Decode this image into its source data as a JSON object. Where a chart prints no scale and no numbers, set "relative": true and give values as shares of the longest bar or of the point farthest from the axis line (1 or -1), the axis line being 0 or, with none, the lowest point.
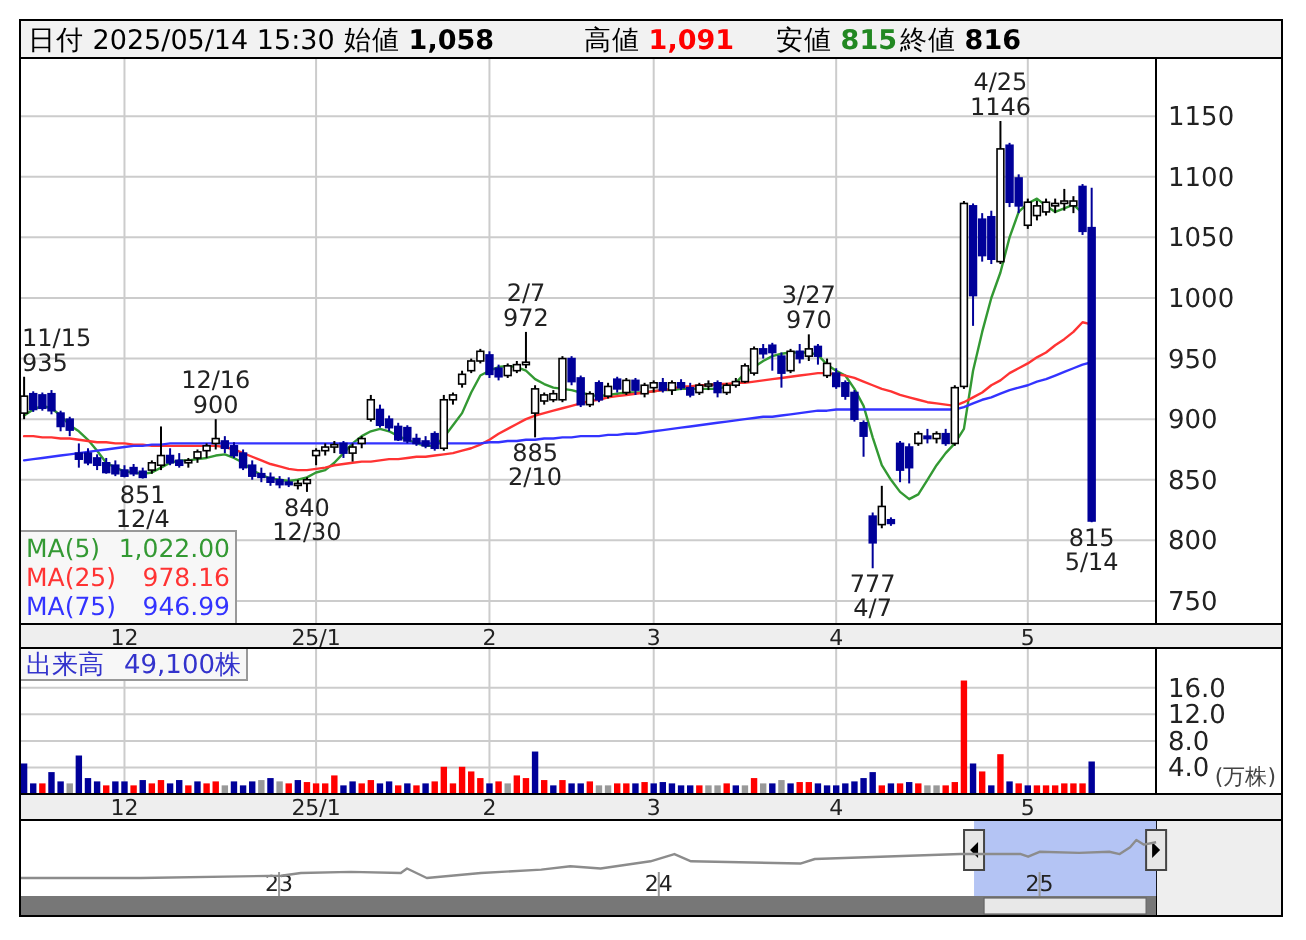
{
  "chart_data": [
    {
      "type": "candlestick",
      "title": "日付 2025/05/14 15:30",
      "annotations": [
        "始値 **1,058**",
        "高値 **1,091**",
        "安値 **815**",
        "終値 **816**",
        "1,022.00",
        "978.16",
        "946.99",
        "11/15",
        "935",
        {
          "text": "851",
          "y": 851
        },
        {
          "text": "12/4",
          "y": 851
        },
        {
          "text": "12/16",
          "y": 900
        },
        {
          "text": "900",
          "y": 900
        },
        {
          "text": "840",
          "y": 840
        },
        {
          "text": "12/30",
          "y": 840
        },
        {
          "text": "2/7",
          "y": 972
        },
        {
          "text": "972",
          "y": 972
        },
        {
          "text": "885",
          "y": 885
        },
        {
          "text": "2/10",
          "y": 885
        },
        {
          "text": "3/27",
          "y": 970
        },
        {
          "text": "970",
          "y": 970
        },
        {
          "text": "777",
          "y": 777
        },
        {
          "text": "4/7",
          "y": 777
        },
        {
          "text": "4/25",
          "y": 1146
        },
        {
          "text": "1146",
          "y": 1146
        },
        {
          "text": "815",
          "y": 815
        },
        {
          "text": "5/14",
          "y": 815
        }
      ],
      "categories": [
        null,
        null,
        null,
        null,
        null,
        null,
        null,
        null,
        null,
        null,
        null,
        "12",
        null,
        null,
        null,
        null,
        null,
        null,
        null,
        null,
        null,
        null,
        null,
        null,
        null,
        null,
        null,
        null,
        null,
        null,
        null,
        null,
        "25/1",
        null,
        null,
        null,
        null,
        null,
        null,
        null,
        null,
        null,
        null,
        null,
        null,
        null,
        null,
        null,
        null,
        null,
        null,
        "2",
        null,
        null,
        null,
        null,
        null,
        null,
        null,
        null,
        null,
        null,
        null,
        null,
        null,
        null,
        null,
        null,
        null,
        "3",
        null,
        null,
        null,
        null,
        null,
        null,
        null,
        null,
        null,
        null,
        null,
        null,
        null,
        null,
        null,
        null,
        null,
        null,
        null,
        "4",
        null,
        null,
        null,
        null,
        null,
        null,
        null,
        null,
        null,
        null,
        null,
        null,
        null,
        null,
        null,
        null,
        null,
        null,
        null,
        null,
        "5",
        null,
        null,
        null,
        null,
        null,
        null,
        null
      ],
      "ohlc": [
        [
          905,
          935,
          900,
          919
        ],
        [
          921,
          923,
          906,
          908
        ],
        [
          920,
          922,
          907,
          909
        ],
        [
          921,
          924,
          904,
          907
        ],
        [
          905,
          907,
          890,
          894
        ],
        [
          900,
          902,
          886,
          891
        ],
        [
          872,
          880,
          860,
          867
        ],
        [
          872,
          876,
          862,
          864
        ],
        [
          868,
          871,
          858,
          862
        ],
        [
          864,
          868,
          855,
          856
        ],
        [
          862,
          866,
          853,
          855
        ],
        [
          858,
          862,
          852,
          853
        ],
        [
          860,
          863,
          853,
          855
        ],
        [
          857,
          860,
          851,
          852
        ],
        [
          858,
          866,
          855,
          864
        ],
        [
          862,
          894,
          858,
          870
        ],
        [
          870,
          876,
          862,
          864
        ],
        [
          866,
          872,
          860,
          862
        ],
        [
          864,
          868,
          860,
          866
        ],
        [
          868,
          875,
          864,
          873
        ],
        [
          874,
          880,
          868,
          878
        ],
        [
          880,
          900,
          875,
          884
        ],
        [
          882,
          886,
          872,
          876
        ],
        [
          878,
          881,
          868,
          870
        ],
        [
          872,
          875,
          858,
          860
        ],
        [
          862,
          866,
          850,
          853
        ],
        [
          855,
          860,
          848,
          852
        ],
        [
          852,
          856,
          845,
          848
        ],
        [
          850,
          853,
          843,
          846
        ],
        [
          848,
          852,
          844,
          846
        ],
        [
          846,
          850,
          842,
          847
        ],
        [
          847,
          852,
          840,
          850
        ],
        [
          870,
          876,
          862,
          874
        ],
        [
          874,
          880,
          870,
          877
        ],
        [
          877,
          882,
          872,
          879
        ],
        [
          880,
          882,
          868,
          872
        ],
        [
          872,
          880,
          865,
          877
        ],
        [
          880,
          886,
          876,
          884
        ],
        [
          900,
          920,
          898,
          916
        ],
        [
          908,
          912,
          893,
          895
        ],
        [
          900,
          903,
          890,
          893
        ],
        [
          894,
          897,
          882,
          883
        ],
        [
          893,
          895,
          880,
          882
        ],
        [
          884,
          888,
          878,
          880
        ],
        [
          882,
          886,
          876,
          878
        ],
        [
          888,
          890,
          874,
          876
        ],
        [
          876,
          920,
          874,
          916
        ],
        [
          916,
          922,
          912,
          920
        ],
        [
          929,
          940,
          926,
          937
        ],
        [
          940,
          950,
          938,
          948
        ],
        [
          948,
          958,
          946,
          956
        ],
        [
          953,
          956,
          934,
          937
        ],
        [
          942,
          945,
          932,
          935
        ],
        [
          936,
          946,
          934,
          944
        ],
        [
          940,
          948,
          938,
          945
        ],
        [
          945,
          972,
          942,
          947
        ],
        [
          905,
          928,
          885,
          925
        ],
        [
          915,
          922,
          912,
          920
        ],
        [
          916,
          924,
          914,
          921
        ],
        [
          916,
          952,
          914,
          950
        ],
        [
          950,
          952,
          928,
          931
        ],
        [
          934,
          936,
          910,
          912
        ],
        [
          912,
          923,
          910,
          921
        ],
        [
          930,
          932,
          914,
          916
        ],
        [
          919,
          930,
          917,
          927
        ],
        [
          933,
          935,
          922,
          925
        ],
        [
          922,
          934,
          920,
          932
        ],
        [
          932,
          934,
          920,
          924
        ],
        [
          921,
          930,
          918,
          928
        ],
        [
          926,
          932,
          922,
          930
        ],
        [
          930,
          934,
          922,
          924
        ],
        [
          924,
          932,
          920,
          930
        ],
        [
          930,
          933,
          924,
          926
        ],
        [
          926,
          930,
          918,
          920
        ],
        [
          922,
          930,
          920,
          928
        ],
        [
          928,
          932,
          924,
          929
        ],
        [
          930,
          932,
          918,
          922
        ],
        [
          922,
          930,
          920,
          928
        ],
        [
          928,
          934,
          926,
          931
        ],
        [
          931,
          946,
          930,
          944
        ],
        [
          938,
          960,
          936,
          958
        ],
        [
          958,
          962,
          950,
          954
        ],
        [
          961,
          963,
          940,
          955
        ],
        [
          952,
          955,
          926,
          938
        ],
        [
          940,
          958,
          938,
          956
        ],
        [
          956,
          962,
          946,
          950
        ],
        [
          952,
          970,
          948,
          958
        ],
        [
          960,
          962,
          945,
          952
        ],
        [
          936,
          950,
          934,
          946
        ],
        [
          938,
          942,
          925,
          927
        ],
        [
          930,
          932,
          916,
          919
        ],
        [
          922,
          924,
          898,
          900
        ],
        [
          897,
          899,
          869,
          886
        ],
        [
          820,
          823,
          777,
          798
        ],
        [
          813,
          845,
          810,
          828
        ],
        [
          817,
          819,
          812,
          814
        ],
        [
          880,
          882,
          848,
          858
        ],
        [
          877,
          880,
          847,
          860
        ],
        [
          880,
          890,
          878,
          888
        ],
        [
          886,
          892,
          880,
          884
        ],
        [
          884,
          890,
          880,
          888
        ],
        [
          888,
          892,
          878,
          880
        ],
        [
          880,
          928,
          878,
          926
        ],
        [
          927,
          1080,
          925,
          1078
        ],
        [
          1076,
          1078,
          977,
          1002
        ],
        [
          1065,
          1070,
          1030,
          1035
        ],
        [
          1067,
          1072,
          1028,
          1032
        ],
        [
          1030,
          1146,
          1028,
          1123
        ],
        [
          1126,
          1128,
          1075,
          1079
        ],
        [
          1099,
          1102,
          1070,
          1076
        ],
        [
          1060,
          1082,
          1057,
          1079
        ],
        [
          1068,
          1080,
          1064,
          1076
        ],
        [
          1071,
          1082,
          1068,
          1079
        ],
        [
          1076,
          1082,
          1070,
          1078
        ],
        [
          1078,
          1090,
          1072,
          1080
        ],
        [
          1076,
          1084,
          1070,
          1080
        ],
        [
          1092,
          1094,
          1052,
          1055
        ],
        [
          1058,
          1091,
          815,
          816
        ]
      ],
      "series": [
        {
          "name": "MA(5)",
          "type": "line",
          "color": "#339933",
          "values": [
            903,
            908,
            911,
            909,
            903,
            895,
            890,
            883,
            874,
            864,
            860,
            857,
            856,
            855,
            856,
            860,
            864,
            866,
            866,
            867,
            868,
            870,
            871,
            868,
            864,
            858,
            854,
            851,
            850,
            849,
            850,
            852,
            856,
            858,
            864,
            872,
            880,
            886,
            890,
            892,
            890,
            886,
            883,
            880,
            878,
            878,
            885,
            895,
            905,
            922,
            936,
            940,
            943,
            944,
            943,
            940,
            933,
            929,
            926,
            925,
            924,
            922,
            920,
            919,
            920,
            921,
            922,
            922,
            922,
            923,
            924,
            924,
            925,
            925,
            925,
            925,
            925,
            927,
            930,
            938,
            943,
            948,
            952,
            954,
            955,
            955,
            955,
            953,
            945,
            940,
            936,
            925,
            911,
            885,
            862,
            850,
            840,
            834,
            838,
            850,
            862,
            872,
            880,
            892,
            940,
            972,
            1000,
            1021,
            1050,
            1071,
            1078,
            1082,
            1076,
            1071,
            1074,
            1077,
            1070,
            null
          ]
        },
        {
          "name": "MA(25)",
          "type": "line",
          "color": "#ff3333",
          "values": [
            886,
            886,
            885,
            885,
            884,
            884,
            883,
            882,
            881,
            881,
            880,
            880,
            879,
            879,
            878,
            878,
            878,
            878,
            878,
            878,
            878,
            878,
            877,
            875,
            872,
            869,
            866,
            863,
            861,
            859,
            858,
            858,
            859,
            860,
            862,
            863,
            864,
            865,
            865,
            866,
            867,
            867,
            868,
            869,
            869,
            870,
            871,
            872,
            874,
            876,
            879,
            883,
            888,
            892,
            896,
            900,
            903,
            905,
            907,
            909,
            911,
            913,
            915,
            916,
            918,
            919,
            920,
            921,
            922,
            923,
            924,
            925,
            927,
            927,
            928,
            928,
            929,
            929,
            930,
            930,
            931,
            932,
            933,
            934,
            935,
            936,
            937,
            938,
            938,
            937,
            936,
            934,
            931,
            928,
            925,
            923,
            920,
            918,
            916,
            914,
            913,
            912,
            911,
            914,
            918,
            922,
            928,
            932,
            938,
            942,
            946,
            951,
            955,
            961,
            966,
            972,
            980,
            978.16
          ]
        },
        {
          "name": "MA(75)",
          "type": "line",
          "color": "#3333ff",
          "values": [
            866,
            867,
            868,
            869,
            870,
            871,
            872,
            873,
            874,
            875,
            876,
            877,
            878,
            878,
            879,
            879,
            880,
            880,
            880,
            880,
            880,
            880,
            880,
            880,
            880,
            880,
            880,
            880,
            880,
            880,
            880,
            880,
            880,
            880,
            880,
            880,
            880,
            880,
            880,
            880,
            880,
            880,
            880,
            880,
            880,
            880,
            880,
            880,
            880,
            880,
            880,
            881,
            881,
            882,
            882,
            883,
            883,
            884,
            884,
            885,
            885,
            886,
            886,
            886,
            887,
            887,
            888,
            888,
            889,
            890,
            891,
            892,
            893,
            894,
            895,
            896,
            897,
            898,
            899,
            900,
            901,
            902,
            902,
            903,
            904,
            905,
            906,
            907,
            907,
            908,
            908,
            908,
            908,
            908,
            908,
            908,
            908,
            908,
            908,
            908,
            908,
            908,
            908,
            910,
            913,
            916,
            918,
            921,
            924,
            926,
            928,
            931,
            933,
            936,
            939,
            942,
            945,
            946.99
          ]
        }
      ],
      "ylim": [
        731,
        1198
      ],
      "yticks": [
        750,
        800,
        850,
        900,
        950,
        1000,
        1050,
        1100,
        1150
      ],
      "grid": true,
      "legend": "bottom left"
    },
    {
      "type": "bar",
      "ylabel": "(万株)",
      "annotations": [
        "49,100株"
      ],
      "categories": [
        null,
        null,
        null,
        null,
        null,
        null,
        null,
        null,
        null,
        null,
        null,
        "12",
        null,
        null,
        null,
        null,
        null,
        null,
        null,
        null,
        null,
        null,
        null,
        null,
        null,
        null,
        null,
        null,
        null,
        null,
        null,
        null,
        "25/1",
        null,
        null,
        null,
        null,
        null,
        null,
        null,
        null,
        null,
        null,
        null,
        null,
        null,
        null,
        null,
        null,
        null,
        null,
        "2",
        null,
        null,
        null,
        null,
        null,
        null,
        null,
        null,
        null,
        null,
        null,
        null,
        null,
        null,
        null,
        null,
        null,
        "3",
        null,
        null,
        null,
        null,
        null,
        null,
        null,
        null,
        null,
        null,
        null,
        null,
        null,
        null,
        null,
        null,
        null,
        null,
        null,
        "4",
        null,
        null,
        null,
        null,
        null,
        null,
        null,
        null,
        null,
        null,
        null,
        null,
        null,
        null,
        null,
        null,
        null,
        null,
        null,
        null,
        "5",
        null,
        null,
        null,
        null,
        null,
        null,
        null
      ],
      "series": [
        {
          "name": "出来高",
          "values": [
            4.6,
            1.6,
            1.6,
            3.3,
            1.9,
            1.6,
            5.8,
            2.4,
            1.9,
            1.3,
            1.9,
            1.9,
            1.3,
            2.1,
            1.6,
            2.1,
            1.6,
            2.1,
            1.3,
            1.9,
            1.6,
            1.9,
            1.3,
            1.9,
            1.3,
            1.9,
            2.1,
            2.4,
            1.9,
            1.6,
            2.1,
            1.8,
            1.6,
            1.6,
            2.8,
            1.3,
            1.9,
            1.6,
            2.1,
            1.6,
            1.9,
            1.3,
            1.6,
            1.3,
            1.6,
            1.9,
            4.1,
            1.6,
            4.1,
            3.4,
            2.4,
            1.6,
            1.9,
            1.6,
            2.8,
            2.4,
            6.4,
            2.1,
            1.3,
            2.1,
            1.6,
            1.6,
            1.9,
            1.3,
            1.3,
            1.6,
            1.6,
            1.6,
            1.8,
            1.6,
            1.8,
            1.6,
            1.3,
            1.3,
            1.3,
            1.3,
            1.3,
            1.6,
            1.3,
            1.3,
            2.4,
            1.6,
            1.6,
            2.1,
            1.6,
            1.8,
            1.8,
            1.6,
            1.3,
            1.3,
            1.6,
            1.9,
            2.4,
            3.3,
            1.3,
            1.6,
            1.6,
            1.8,
            1.6,
            1.3,
            1.3,
            1.3,
            1.8,
            17.1,
            4.6,
            3.4,
            1.3,
            6.0,
            1.9,
            1.6,
            1.3,
            1.3,
            1.3,
            1.3,
            1.6,
            1.6,
            1.6,
            4.9
          ],
          "colors": [
            "#000099",
            "#000099",
            "#ff0000",
            "#000099",
            "#000099",
            "#999999",
            "#000099",
            "#000099",
            "#000099",
            "#ff0000",
            "#000099",
            "#000099",
            "#ff0000",
            "#000099",
            "#ff0000",
            "#ff0000",
            "#000099",
            "#000099",
            "#ff0000",
            "#000099",
            "#ff0000",
            "#ff0000",
            "#999999",
            "#000099",
            "#000099",
            "#000099",
            "#999999",
            "#000099",
            "#999999",
            "#ff0000",
            "#000099",
            "#ff0000",
            "#ff0000",
            "#ff0000",
            "#ff0000",
            "#000099",
            "#000099",
            "#ff0000",
            "#ff0000",
            "#000099",
            "#000099",
            "#ff0000",
            "#000099",
            "#ff0000",
            "#000099",
            "#ff0000",
            "#ff0000",
            "#ff0000",
            "#ff0000",
            "#ff0000",
            "#ff0000",
            "#000099",
            "#ff0000",
            "#999999",
            "#ff0000",
            "#ff0000",
            "#000099",
            "#ff0000",
            "#000099",
            "#ff0000",
            "#000099",
            "#000099",
            "#ff0000",
            "#999999",
            "#999999",
            "#ff0000",
            "#ff0000",
            "#000099",
            "#ff0000",
            "#000099",
            "#000099",
            "#000099",
            "#000099",
            "#000099",
            "#ff0000",
            "#999999",
            "#999999",
            "#ff0000",
            "#000099",
            "#999999",
            "#ff0000",
            "#999999",
            "#000099",
            "#999999",
            "#000099",
            "#ff0000",
            "#ff0000",
            "#000099",
            "#000099",
            "#000099",
            "#000099",
            "#000099",
            "#000099",
            "#000099",
            "#ff0000",
            "#000099",
            "#ff0000",
            "#000099",
            "#ff0000",
            "#999999",
            "#999999",
            "#ff0000",
            "#ff0000",
            "#ff0000",
            "#000099",
            "#ff0000",
            "#000099",
            "#ff0000",
            "#000099",
            "#ff0000",
            "#000099",
            "#ff0000",
            "#ff0000",
            "#ff0000",
            "#ff0000",
            "#ff0000",
            "#ff0000",
            "#000099"
          ]
        }
      ],
      "ylim": [
        0,
        22
      ],
      "yticks": [
        {
          "value": 4,
          "label": "4.0"
        },
        {
          "value": 8,
          "label": "8.0"
        },
        {
          "value": 12,
          "label": "12.0"
        },
        {
          "value": 16,
          "label": "16.0"
        }
      ],
      "grid": true,
      "legend": "top left"
    },
    {
      "type": "line",
      "relative": true,
      "color": "#8c8c8c",
      "x": [
        "2022-04-27",
        "2022-08-21",
        "2023-01-03",
        "2023-01-22",
        "2023-03-11",
        "2023-04-28",
        "2023-05-04",
        "2023-05-23",
        "2023-07-14",
        "2023-09-10",
        "2023-10-08",
        "2023-11-06",
        "2023-12-24",
        "2024-01-16",
        "2024-02-01",
        "2024-05-16",
        "2024-05-30",
        "2024-08-01",
        "2024-10-17",
        "2024-10-30",
        "2024-12-14",
        "2024-12-21",
        "2025-01-01",
        "2025-02-08",
        "2025-03-09",
        "2025-03-19",
        "2025-03-29",
        "2025-04-04",
        "2025-04-11",
        "2025-04-23"
      ],
      "values": [
        0,
        0,
        0.06,
        0.13,
        0.16,
        0.13,
        0.25,
        0,
        0.13,
        0.22,
        0.31,
        0.25,
        0.44,
        0.63,
        0.44,
        0.38,
        0.5,
        0.56,
        0.63,
        0.63,
        0.63,
        0.56,
        0.69,
        0.66,
        0.69,
        0.63,
        0.81,
        1,
        0.88,
        0.94
      ],
      "xlim": [
        "2022-04-27",
        "2025-08-22"
      ],
      "xticks": [
        {
          "value": "2023-01-01",
          "label": "23"
        },
        {
          "value": "2024-01-01",
          "label": "24"
        },
        {
          "value": "2025-01-01",
          "label": "25"
        }
      ],
      "bands": [
        {
          "axis": "x",
          "from": "2024-10-30",
          "to": "2025-04-23",
          "color": "#b4c4f4"
        }
      ]
    }
  ]
}
